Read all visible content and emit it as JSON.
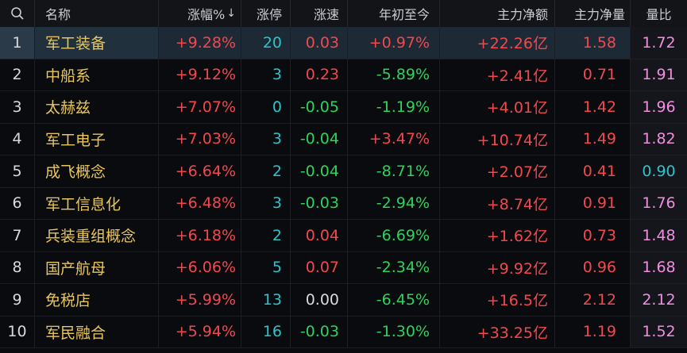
{
  "header": {
    "name": "名称",
    "pct": "涨幅%",
    "sort_arrow": "↓",
    "zt": "涨停",
    "zs": "涨速",
    "ytd": "年初至今",
    "net": "主力净额",
    "main": "主力净量",
    "vr": "量比"
  },
  "rows": [
    {
      "idx": "1",
      "name": "军工装备",
      "pct": "+9.28%",
      "zt": "20",
      "zs": "0.03",
      "ytd": "+0.97%",
      "net": "+22.26亿",
      "main": "1.58",
      "vr": "1.72"
    },
    {
      "idx": "2",
      "name": "中船系",
      "pct": "+9.12%",
      "zt": "3",
      "zs": "0.23",
      "ytd": "-5.89%",
      "net": "+2.41亿",
      "main": "0.71",
      "vr": "1.91"
    },
    {
      "idx": "3",
      "name": "太赫兹",
      "pct": "+7.07%",
      "zt": "0",
      "zs": "-0.05",
      "ytd": "-1.19%",
      "net": "+4.01亿",
      "main": "1.42",
      "vr": "1.96"
    },
    {
      "idx": "4",
      "name": "军工电子",
      "pct": "+7.03%",
      "zt": "3",
      "zs": "-0.04",
      "ytd": "+3.47%",
      "net": "+10.74亿",
      "main": "1.49",
      "vr": "1.82"
    },
    {
      "idx": "5",
      "name": "成飞概念",
      "pct": "+6.64%",
      "zt": "2",
      "zs": "-0.04",
      "ytd": "-8.71%",
      "net": "+2.07亿",
      "main": "0.41",
      "vr": "0.90"
    },
    {
      "idx": "6",
      "name": "军工信息化",
      "pct": "+6.48%",
      "zt": "3",
      "zs": "-0.03",
      "ytd": "-2.94%",
      "net": "+8.74亿",
      "main": "0.91",
      "vr": "1.76"
    },
    {
      "idx": "7",
      "name": "兵装重组概念",
      "pct": "+6.18%",
      "zt": "2",
      "zs": "0.04",
      "ytd": "-6.69%",
      "net": "+1.62亿",
      "main": "0.73",
      "vr": "1.48"
    },
    {
      "idx": "8",
      "name": "国产航母",
      "pct": "+6.06%",
      "zt": "5",
      "zs": "0.07",
      "ytd": "-2.34%",
      "net": "+9.92亿",
      "main": "0.96",
      "vr": "1.68"
    },
    {
      "idx": "9",
      "name": "免税店",
      "pct": "+5.99%",
      "zt": "13",
      "zs": "0.00",
      "ytd": "-6.45%",
      "net": "+16.5亿",
      "main": "2.12",
      "vr": "2.12"
    },
    {
      "idx": "10",
      "name": "军民融合",
      "pct": "+5.94%",
      "zt": "16",
      "zs": "-0.03",
      "ytd": "-1.30%",
      "net": "+33.25亿",
      "main": "1.19",
      "vr": "1.52"
    }
  ],
  "colors": {
    "up": "#f0494d",
    "down": "#2fd25a",
    "flat": "#d7d9de",
    "name": "#e8c75e",
    "limit_up_count": "#2fc3c8",
    "volume_ratio_high": "#f08fe0",
    "volume_ratio_low": "#2fc3c8"
  },
  "selected_row": 0
}
